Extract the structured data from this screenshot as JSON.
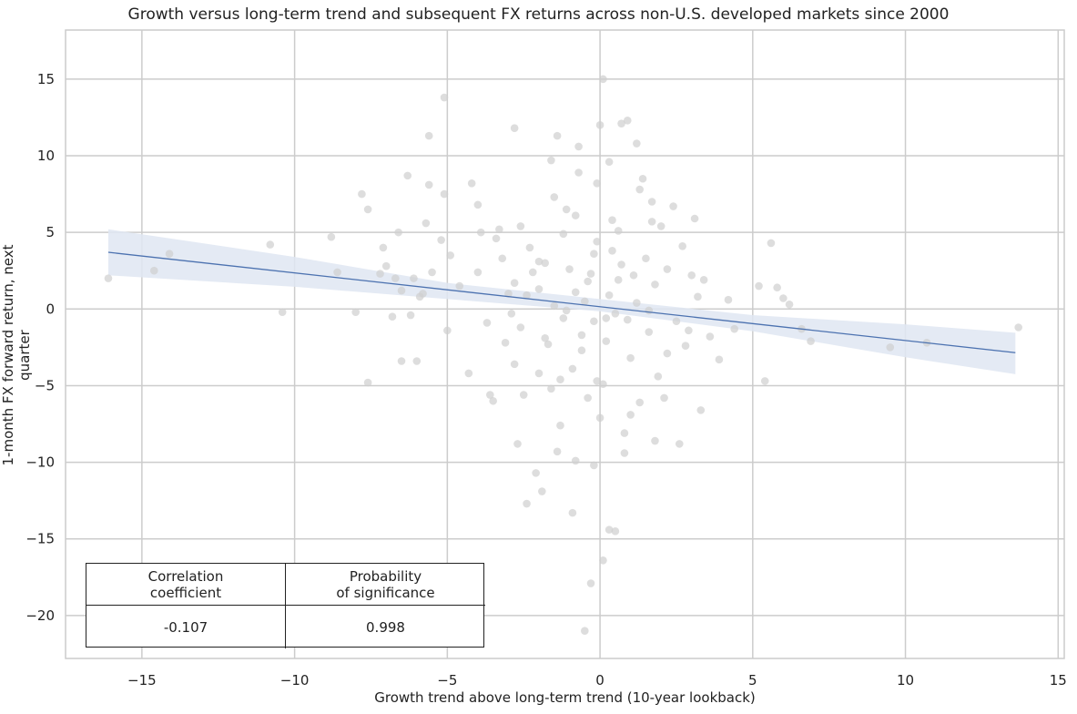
{
  "chart_data": {
    "type": "scatter",
    "title": "Growth versus long-term trend and subsequent FX returns across non-U.S. developed markets since 2000",
    "xlabel": "Growth trend above long-term trend (10-year lookback)",
    "ylabel": "1-month FX forward return, next quarter",
    "xlim": [
      -17.5,
      15.2
    ],
    "ylim": [
      -22.8,
      18.2
    ],
    "xticks": [
      -15,
      -10,
      -5,
      0,
      5,
      10,
      15
    ],
    "xtick_labels": [
      "−15",
      "−10",
      "−5",
      "0",
      "5",
      "10",
      "15"
    ],
    "yticks": [
      15,
      10,
      5,
      0,
      -5,
      -10,
      -15,
      -20
    ],
    "ytick_labels": [
      "15",
      "10",
      "5",
      "0",
      "−5",
      "−10",
      "−15",
      "−20"
    ],
    "grid": true,
    "point_color": "#cfcfcf",
    "regression": {
      "color": "#4c72b0",
      "band_color": "#dfe6f2",
      "line": [
        [
          -16.1,
          3.7
        ],
        [
          13.6,
          -2.85
        ]
      ],
      "band_upper": [
        [
          -16.1,
          5.2
        ],
        [
          -10,
          3.4
        ],
        [
          -5,
          1.7
        ],
        [
          0,
          0.65
        ],
        [
          5,
          -0.4
        ],
        [
          10,
          -1.0
        ],
        [
          13.6,
          -1.55
        ]
      ],
      "band_lower": [
        [
          -16.1,
          2.2
        ],
        [
          -10,
          1.45
        ],
        [
          -5,
          0.65
        ],
        [
          0,
          -0.15
        ],
        [
          5,
          -1.45
        ],
        [
          10,
          -3.15
        ],
        [
          13.6,
          -4.25
        ]
      ]
    },
    "points": [
      [
        -16.1,
        2.0
      ],
      [
        -14.6,
        2.5
      ],
      [
        -14.1,
        3.6
      ],
      [
        -10.8,
        4.2
      ],
      [
        -10.4,
        -0.2
      ],
      [
        -8.8,
        4.7
      ],
      [
        -8.6,
        2.4
      ],
      [
        -8.0,
        -0.2
      ],
      [
        -7.8,
        7.5
      ],
      [
        -7.6,
        6.5
      ],
      [
        -7.6,
        -4.8
      ],
      [
        -7.2,
        2.3
      ],
      [
        -7.1,
        4.0
      ],
      [
        -7.0,
        2.8
      ],
      [
        -6.8,
        -0.5
      ],
      [
        -6.7,
        2.0
      ],
      [
        -6.6,
        5.0
      ],
      [
        -6.5,
        -3.4
      ],
      [
        -6.5,
        1.2
      ],
      [
        -6.3,
        8.7
      ],
      [
        -6.2,
        -0.4
      ],
      [
        -6.1,
        2.0
      ],
      [
        -6.0,
        -3.4
      ],
      [
        -5.9,
        0.8
      ],
      [
        -5.8,
        1.0
      ],
      [
        -5.7,
        5.6
      ],
      [
        -5.6,
        11.3
      ],
      [
        -5.6,
        8.1
      ],
      [
        -5.5,
        2.4
      ],
      [
        -5.2,
        4.5
      ],
      [
        -5.1,
        7.5
      ],
      [
        -5.1,
        13.8
      ],
      [
        -5.0,
        -1.4
      ],
      [
        -4.9,
        3.5
      ],
      [
        -4.6,
        1.5
      ],
      [
        -4.3,
        -4.2
      ],
      [
        -4.2,
        8.2
      ],
      [
        -4.0,
        2.4
      ],
      [
        -4.0,
        6.8
      ],
      [
        -3.9,
        5.0
      ],
      [
        -3.7,
        -0.9
      ],
      [
        -3.6,
        -5.6
      ],
      [
        -3.5,
        -6.0
      ],
      [
        -3.4,
        4.6
      ],
      [
        -3.3,
        5.2
      ],
      [
        -3.2,
        3.3
      ],
      [
        -3.0,
        1.0
      ],
      [
        -2.9,
        -0.3
      ],
      [
        -2.8,
        11.8
      ],
      [
        -2.8,
        -3.6
      ],
      [
        -2.7,
        -8.8
      ],
      [
        -2.6,
        -1.2
      ],
      [
        -2.6,
        5.4
      ],
      [
        -2.5,
        -5.6
      ],
      [
        -2.4,
        -12.7
      ],
      [
        -2.3,
        4.0
      ],
      [
        -2.2,
        2.4
      ],
      [
        -2.1,
        -10.7
      ],
      [
        -2.0,
        -4.2
      ],
      [
        -2.0,
        1.3
      ],
      [
        -1.9,
        -11.9
      ],
      [
        -1.8,
        3.0
      ],
      [
        -1.7,
        -2.3
      ],
      [
        -1.6,
        9.7
      ],
      [
        -1.5,
        7.3
      ],
      [
        -1.4,
        11.3
      ],
      [
        -1.4,
        -9.3
      ],
      [
        -1.3,
        -4.6
      ],
      [
        -1.2,
        4.9
      ],
      [
        -1.1,
        -0.1
      ],
      [
        -1.0,
        2.6
      ],
      [
        -0.9,
        -13.3
      ],
      [
        -0.8,
        -9.9
      ],
      [
        -0.8,
        6.1
      ],
      [
        -0.7,
        10.6
      ],
      [
        -0.6,
        -1.7
      ],
      [
        -0.5,
        -21.0
      ],
      [
        -0.4,
        1.8
      ],
      [
        -0.3,
        -17.9
      ],
      [
        -0.2,
        3.6
      ],
      [
        -0.1,
        8.2
      ],
      [
        -0.1,
        -4.7
      ],
      [
        0.0,
        12.0
      ],
      [
        0.0,
        -7.1
      ],
      [
        0.1,
        15.0
      ],
      [
        0.1,
        -16.4
      ],
      [
        0.2,
        -0.6
      ],
      [
        0.3,
        -14.4
      ],
      [
        0.4,
        5.8
      ],
      [
        0.5,
        -14.5
      ],
      [
        0.6,
        1.9
      ],
      [
        0.7,
        12.1
      ],
      [
        0.8,
        -9.4
      ],
      [
        0.9,
        12.3
      ],
      [
        1.0,
        -3.2
      ],
      [
        1.1,
        2.2
      ],
      [
        1.2,
        10.8
      ],
      [
        1.3,
        -6.1
      ],
      [
        1.4,
        8.5
      ],
      [
        1.5,
        3.3
      ],
      [
        1.6,
        -1.5
      ],
      [
        1.7,
        7.0
      ],
      [
        1.8,
        -8.6
      ],
      [
        1.9,
        -4.4
      ],
      [
        2.0,
        5.4
      ],
      [
        2.1,
        -5.8
      ],
      [
        2.2,
        2.6
      ],
      [
        2.4,
        6.7
      ],
      [
        2.6,
        -8.8
      ],
      [
        2.7,
        4.1
      ],
      [
        2.8,
        -2.4
      ],
      [
        3.0,
        2.2
      ],
      [
        3.1,
        5.9
      ],
      [
        3.3,
        -6.6
      ],
      [
        3.4,
        1.9
      ],
      [
        3.6,
        -1.8
      ],
      [
        3.9,
        -3.3
      ],
      [
        4.2,
        0.6
      ],
      [
        4.4,
        -1.3
      ],
      [
        5.2,
        1.5
      ],
      [
        5.4,
        -4.7
      ],
      [
        5.6,
        4.3
      ],
      [
        5.8,
        1.4
      ],
      [
        6.0,
        0.7
      ],
      [
        6.2,
        0.3
      ],
      [
        6.6,
        -1.3
      ],
      [
        6.9,
        -2.1
      ],
      [
        9.5,
        -2.5
      ],
      [
        10.7,
        -2.2
      ],
      [
        13.7,
        -1.2
      ],
      [
        -0.5,
        0.5
      ],
      [
        -0.2,
        -0.8
      ],
      [
        0.3,
        0.9
      ],
      [
        0.5,
        -0.3
      ],
      [
        -0.8,
        1.1
      ],
      [
        0.9,
        -0.7
      ],
      [
        -1.2,
        -0.6
      ],
      [
        1.2,
        0.4
      ],
      [
        -0.3,
        2.3
      ],
      [
        0.2,
        -2.1
      ],
      [
        -0.6,
        -2.7
      ],
      [
        0.7,
        2.9
      ],
      [
        -1.5,
        0.2
      ],
      [
        1.6,
        -0.1
      ],
      [
        -0.9,
        -3.9
      ],
      [
        0.4,
        3.8
      ],
      [
        -1.8,
        -1.9
      ],
      [
        1.8,
        1.6
      ],
      [
        -0.1,
        4.4
      ],
      [
        0.1,
        -4.9
      ],
      [
        -2.4,
        0.9
      ],
      [
        2.5,
        -0.8
      ],
      [
        -1.1,
        6.5
      ],
      [
        1.0,
        -6.9
      ],
      [
        -0.4,
        -5.8
      ],
      [
        0.6,
        5.1
      ],
      [
        -2.0,
        3.1
      ],
      [
        2.2,
        -2.9
      ],
      [
        -1.3,
        -7.6
      ],
      [
        1.3,
        7.8
      ],
      [
        -0.7,
        8.9
      ],
      [
        0.8,
        -8.1
      ],
      [
        -2.8,
        1.7
      ],
      [
        2.9,
        -1.4
      ],
      [
        -0.2,
        -10.2
      ],
      [
        0.3,
        9.6
      ],
      [
        -1.6,
        -5.2
      ],
      [
        1.7,
        5.7
      ],
      [
        -3.1,
        -2.2
      ],
      [
        3.2,
        0.8
      ]
    ]
  },
  "stats_table": {
    "col1_header": "Correlation\ncoefficient",
    "col2_header": "Probability\nof significance",
    "col1_value": "-0.107",
    "col2_value": "0.998"
  }
}
